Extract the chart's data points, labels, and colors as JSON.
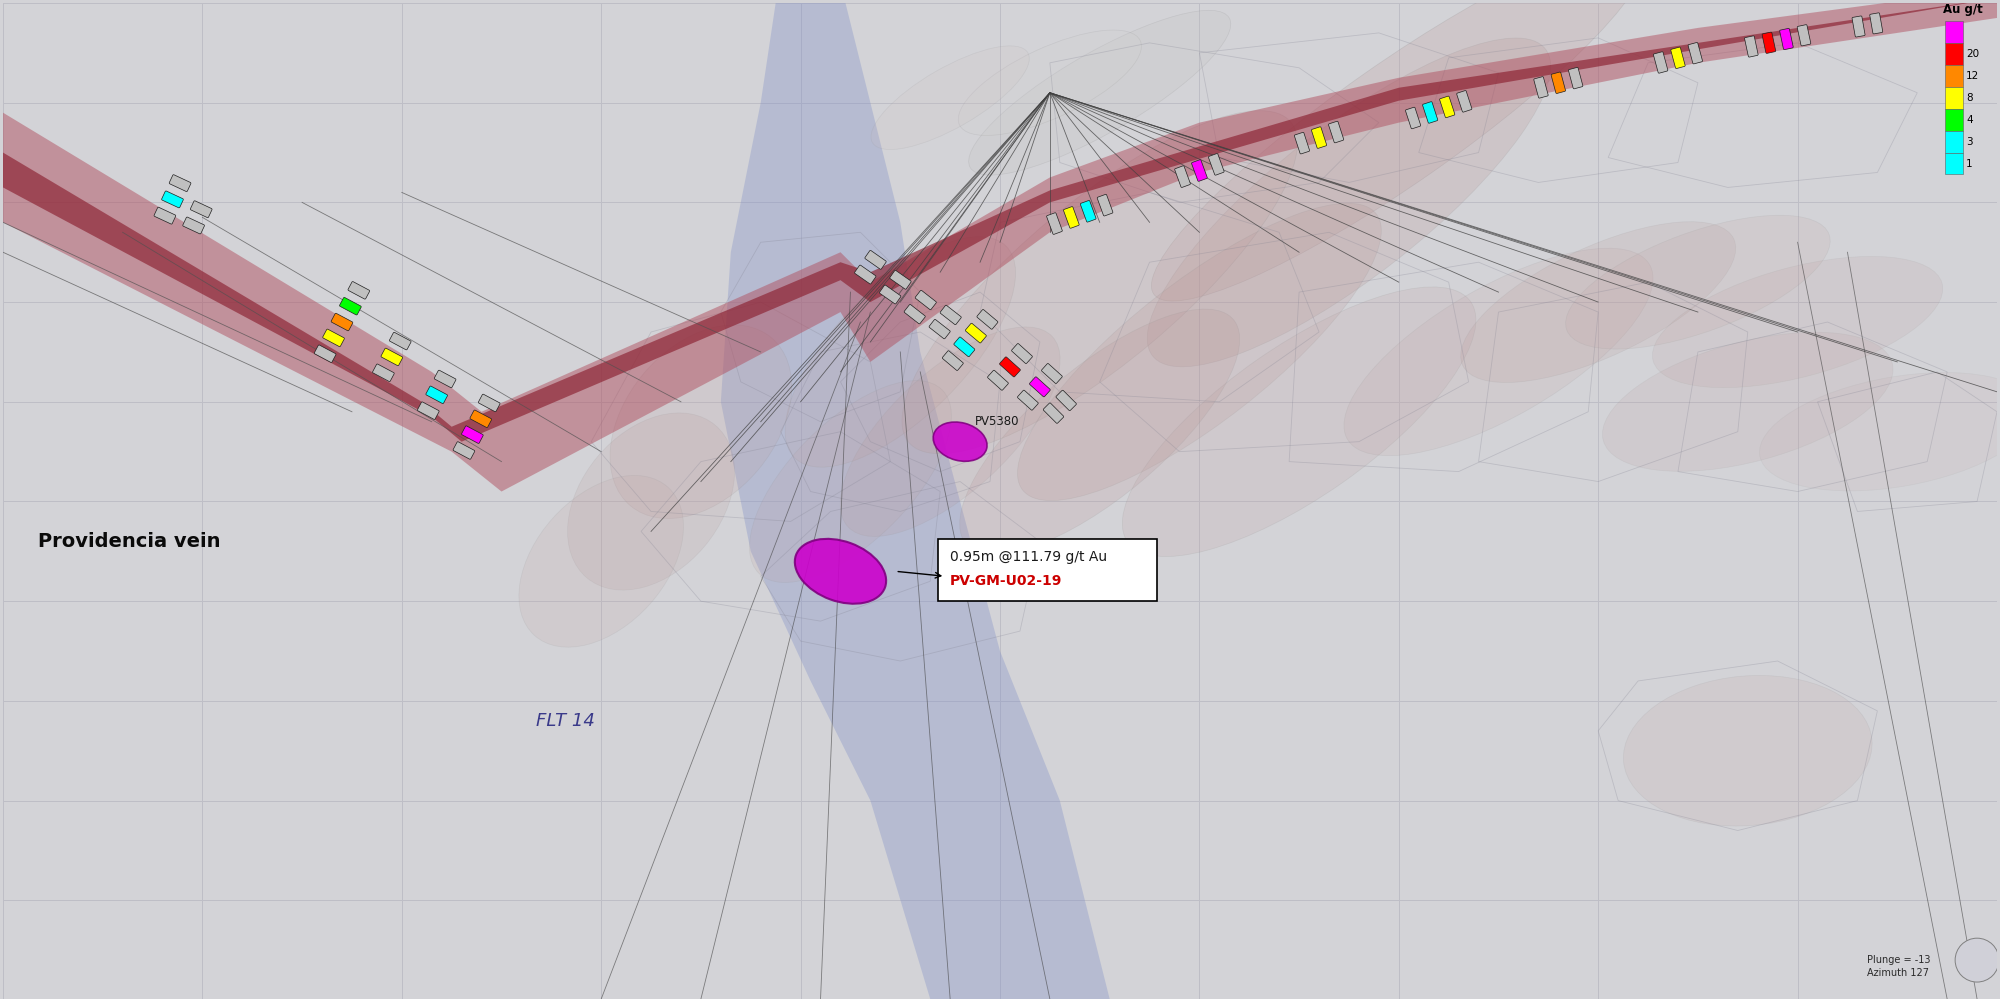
{
  "background_color": "#d3d3d7",
  "grid_color": "#bebec6",
  "fig_width": 20.0,
  "fig_height": 9.99,
  "dpi": 100,
  "providencia_vein_label": "Providencia vein",
  "flt14_label": "FLT 14",
  "pv5380_label": "PV5380",
  "intercept_label_line1": "PV-GM-U02-19",
  "intercept_label_line2": "0.95m @111.79 g/t Au",
  "legend_title": "Au g/t",
  "legend_values": [
    20,
    12,
    8,
    4,
    3,
    1
  ],
  "legend_colors": [
    "#ff0000",
    "#ff8800",
    "#ffff00",
    "#00ff00",
    "#00ffff",
    "#00ffff"
  ],
  "legend_top_color": "#ff00ff",
  "plunge_label": "Plunge = -13",
  "azimuth_label": "Azimuth 127"
}
